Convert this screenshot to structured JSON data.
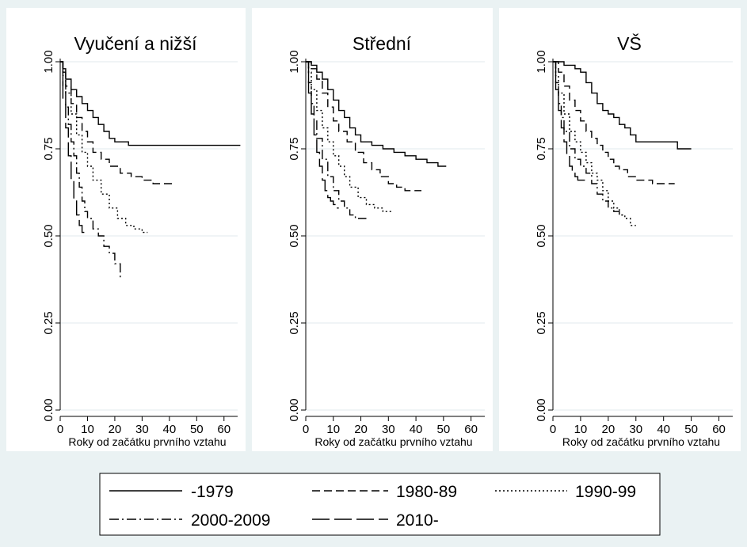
{
  "colors": {
    "background": "#ffffff",
    "outer_background": "#eaf2f3",
    "grid": "#e8eef0",
    "line": "#000000"
  },
  "legend": {
    "placement": "bottom",
    "items": [
      {
        "label": "-1979",
        "style": "solid"
      },
      {
        "label": "1980-89",
        "style": "dash"
      },
      {
        "label": "1990-99",
        "style": "dot"
      },
      {
        "label": "2000-2009",
        "style": "dashdot"
      },
      {
        "label": "2010-",
        "style": "longdash"
      }
    ]
  },
  "chart_data": [
    {
      "type": "line",
      "title": "Vyučení a nižší",
      "xlabel": "Roky od začátku prvního vztahu",
      "ylabel": "",
      "xlim": [
        0,
        65
      ],
      "ylim": [
        0,
        1
      ],
      "xticks": [
        "0",
        "10",
        "20",
        "30",
        "40",
        "50",
        "60"
      ],
      "yticks": [
        "0.00",
        "0.25",
        "0.50",
        "0.75",
        "1.00"
      ],
      "grid": true,
      "series": [
        {
          "name": "-1979",
          "x": [
            0,
            1,
            2,
            4,
            6,
            8,
            10,
            12,
            14,
            16,
            18,
            20,
            25,
            30,
            40,
            50,
            60,
            66
          ],
          "y": [
            1.0,
            0.98,
            0.95,
            0.92,
            0.9,
            0.88,
            0.86,
            0.84,
            0.82,
            0.8,
            0.78,
            0.77,
            0.76,
            0.76,
            0.76,
            0.76,
            0.76,
            0.76
          ]
        },
        {
          "name": "1980-89",
          "x": [
            0,
            1,
            2,
            4,
            6,
            8,
            10,
            12,
            15,
            18,
            22,
            26,
            30,
            34,
            38,
            42
          ],
          "y": [
            1.0,
            0.97,
            0.93,
            0.88,
            0.84,
            0.8,
            0.77,
            0.74,
            0.72,
            0.7,
            0.68,
            0.67,
            0.66,
            0.65,
            0.65,
            0.65
          ]
        },
        {
          "name": "1990-99",
          "x": [
            0,
            1,
            2,
            4,
            6,
            8,
            10,
            12,
            15,
            18,
            21,
            24,
            27,
            30,
            32
          ],
          "y": [
            1.0,
            0.96,
            0.91,
            0.85,
            0.79,
            0.74,
            0.7,
            0.66,
            0.62,
            0.58,
            0.55,
            0.53,
            0.52,
            0.51,
            0.51
          ]
        },
        {
          "name": "2000-2009",
          "x": [
            0,
            1,
            2,
            3,
            4,
            5,
            6,
            7,
            8,
            9,
            10,
            12,
            14,
            16,
            18,
            20,
            22
          ],
          "y": [
            1.0,
            0.93,
            0.87,
            0.82,
            0.77,
            0.73,
            0.68,
            0.64,
            0.6,
            0.57,
            0.55,
            0.52,
            0.5,
            0.47,
            0.45,
            0.42,
            0.38
          ]
        },
        {
          "name": "2010-",
          "x": [
            0,
            1,
            2,
            3,
            4,
            5,
            6,
            7,
            8,
            9,
            10
          ],
          "y": [
            1.0,
            0.89,
            0.81,
            0.73,
            0.66,
            0.6,
            0.56,
            0.53,
            0.51,
            0.51,
            0.51
          ]
        }
      ]
    },
    {
      "type": "line",
      "title": "Střední",
      "xlabel": "Roky od začátku prvního vztahu",
      "ylabel": "",
      "xlim": [
        0,
        65
      ],
      "ylim": [
        0,
        1
      ],
      "xticks": [
        "0",
        "10",
        "20",
        "30",
        "40",
        "50",
        "60"
      ],
      "yticks": [
        "0.00",
        "0.25",
        "0.50",
        "0.75",
        "1.00"
      ],
      "grid": true,
      "series": [
        {
          "name": "-1979",
          "x": [
            0,
            2,
            4,
            6,
            8,
            10,
            12,
            14,
            16,
            18,
            20,
            24,
            28,
            32,
            36,
            40,
            44,
            48,
            51
          ],
          "y": [
            1.0,
            0.99,
            0.97,
            0.95,
            0.92,
            0.89,
            0.86,
            0.84,
            0.81,
            0.79,
            0.77,
            0.76,
            0.75,
            0.74,
            0.73,
            0.72,
            0.71,
            0.7,
            0.7
          ]
        },
        {
          "name": "1980-89",
          "x": [
            0,
            2,
            4,
            6,
            8,
            10,
            12,
            15,
            18,
            21,
            24,
            27,
            30,
            33,
            36,
            39,
            42
          ],
          "y": [
            1.0,
            0.98,
            0.95,
            0.91,
            0.87,
            0.83,
            0.8,
            0.77,
            0.74,
            0.71,
            0.69,
            0.67,
            0.65,
            0.64,
            0.63,
            0.63,
            0.63
          ]
        },
        {
          "name": "1990-99",
          "x": [
            0,
            1,
            2,
            4,
            6,
            8,
            10,
            12,
            14,
            16,
            19,
            22,
            25,
            28,
            31
          ],
          "y": [
            1.0,
            0.97,
            0.92,
            0.86,
            0.81,
            0.77,
            0.73,
            0.7,
            0.67,
            0.64,
            0.61,
            0.59,
            0.58,
            0.57,
            0.57
          ]
        },
        {
          "name": "2000-2009",
          "x": [
            0,
            1,
            2,
            3,
            4,
            6,
            8,
            10,
            12,
            14,
            16,
            18,
            20,
            22
          ],
          "y": [
            1.0,
            0.94,
            0.88,
            0.83,
            0.78,
            0.72,
            0.67,
            0.63,
            0.6,
            0.58,
            0.56,
            0.55,
            0.55,
            0.55
          ]
        },
        {
          "name": "2010-",
          "x": [
            0,
            1,
            2,
            3,
            4,
            5,
            6,
            7,
            8,
            9,
            10,
            11,
            12
          ],
          "y": [
            1.0,
            0.91,
            0.85,
            0.79,
            0.74,
            0.7,
            0.66,
            0.63,
            0.61,
            0.6,
            0.59,
            0.58,
            0.58
          ]
        }
      ]
    },
    {
      "type": "line",
      "title": "VŠ",
      "xlabel": "Roky od začátku prvního vztahu",
      "ylabel": "",
      "xlim": [
        0,
        65
      ],
      "ylim": [
        0,
        1
      ],
      "xticks": [
        "0",
        "10",
        "20",
        "30",
        "40",
        "50",
        "60"
      ],
      "yticks": [
        "0.00",
        "0.25",
        "0.50",
        "0.75",
        "1.00"
      ],
      "grid": true,
      "series": [
        {
          "name": "-1979",
          "x": [
            0,
            4,
            8,
            10,
            12,
            14,
            16,
            18,
            20,
            22,
            24,
            26,
            28,
            30,
            35,
            40,
            45,
            50
          ],
          "y": [
            1.0,
            0.99,
            0.98,
            0.97,
            0.94,
            0.91,
            0.88,
            0.86,
            0.85,
            0.84,
            0.82,
            0.81,
            0.79,
            0.77,
            0.77,
            0.77,
            0.75,
            0.75
          ]
        },
        {
          "name": "1980-89",
          "x": [
            0,
            2,
            4,
            6,
            8,
            10,
            12,
            14,
            16,
            18,
            20,
            22,
            24,
            27,
            30,
            33,
            36,
            40,
            44
          ],
          "y": [
            1.0,
            0.97,
            0.93,
            0.89,
            0.86,
            0.83,
            0.8,
            0.78,
            0.76,
            0.74,
            0.72,
            0.7,
            0.69,
            0.67,
            0.66,
            0.66,
            0.65,
            0.65,
            0.65
          ]
        },
        {
          "name": "1990-99",
          "x": [
            0,
            1,
            2,
            4,
            6,
            8,
            10,
            12,
            14,
            16,
            18,
            20,
            22,
            24,
            26,
            28,
            30
          ],
          "y": [
            1.0,
            0.96,
            0.91,
            0.85,
            0.8,
            0.77,
            0.74,
            0.71,
            0.68,
            0.66,
            0.63,
            0.6,
            0.58,
            0.56,
            0.55,
            0.53,
            0.53
          ]
        },
        {
          "name": "2000-2009",
          "x": [
            0,
            1,
            2,
            3,
            4,
            6,
            8,
            10,
            12,
            14,
            16,
            18,
            20,
            22,
            24,
            26
          ],
          "y": [
            1.0,
            0.94,
            0.88,
            0.84,
            0.8,
            0.75,
            0.72,
            0.7,
            0.68,
            0.65,
            0.62,
            0.6,
            0.58,
            0.57,
            0.56,
            0.56
          ]
        },
        {
          "name": "2010-",
          "x": [
            0,
            1,
            2,
            3,
            4,
            5,
            6,
            7,
            8,
            9,
            10,
            11,
            12
          ],
          "y": [
            1.0,
            0.92,
            0.86,
            0.81,
            0.77,
            0.73,
            0.7,
            0.68,
            0.67,
            0.66,
            0.66,
            0.66,
            0.66
          ]
        }
      ]
    }
  ]
}
